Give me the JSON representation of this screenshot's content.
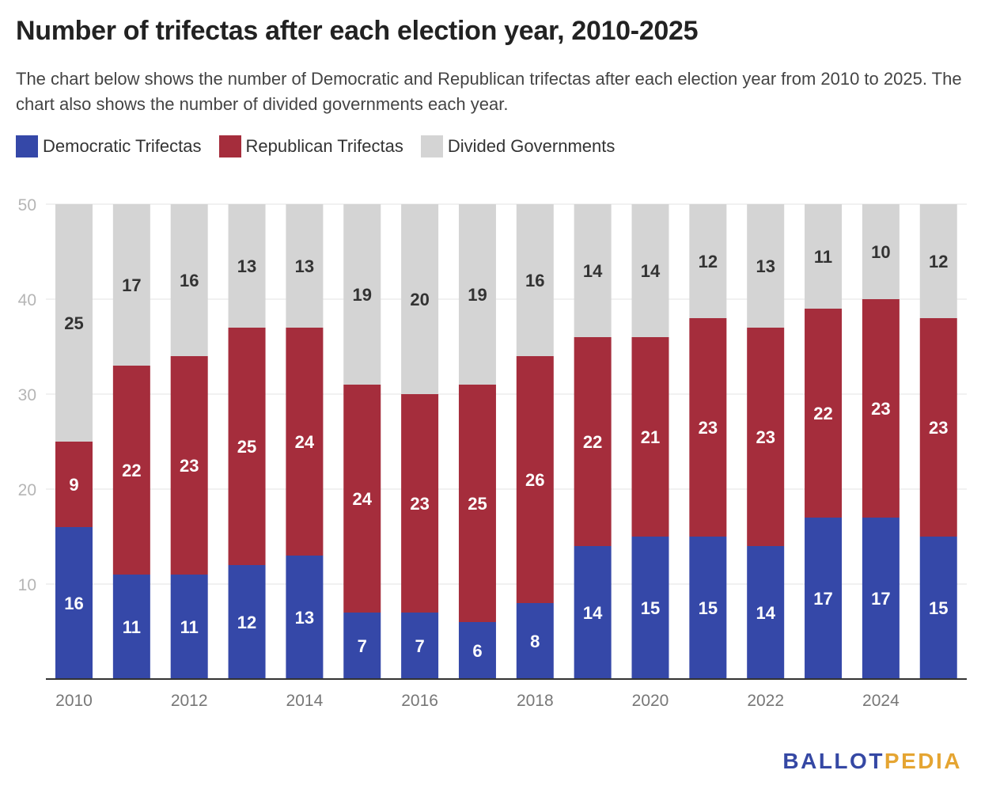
{
  "header": {
    "title": "Number of trifectas after each election year, 2010-2025",
    "subtitle": "The chart below shows the number of Democratic and Republican trifectas after each election year from 2010 to 2025. The chart also shows the number of divided governments each year."
  },
  "legend": [
    {
      "label": "Democratic Trifectas",
      "color": "#3548a8"
    },
    {
      "label": "Republican Trifectas",
      "color": "#a52d3c"
    },
    {
      "label": "Divided Governments",
      "color": "#d4d4d4"
    }
  ],
  "logo": {
    "part1": "BALLOT",
    "part2": "PEDIA"
  },
  "chart_data": {
    "type": "bar",
    "stacked": true,
    "categories": [
      "2010",
      "2011",
      "2012",
      "2013",
      "2014",
      "2015",
      "2016",
      "2017",
      "2018",
      "2019",
      "2020",
      "2021",
      "2022",
      "2023",
      "2024",
      "2025"
    ],
    "x_tick_labels": [
      "2010",
      "2012",
      "2014",
      "2016",
      "2018",
      "2020",
      "2022",
      "2024"
    ],
    "series": [
      {
        "name": "Democratic Trifectas",
        "color": "#3548a8",
        "values": [
          16,
          11,
          11,
          12,
          13,
          7,
          7,
          6,
          8,
          14,
          15,
          15,
          14,
          17,
          17,
          15
        ]
      },
      {
        "name": "Republican Trifectas",
        "color": "#a52d3c",
        "values": [
          9,
          22,
          23,
          25,
          24,
          24,
          23,
          25,
          26,
          22,
          21,
          23,
          23,
          22,
          23,
          23
        ]
      },
      {
        "name": "Divided Governments",
        "color": "#d4d4d4",
        "values": [
          25,
          17,
          16,
          13,
          13,
          19,
          20,
          19,
          16,
          14,
          14,
          12,
          13,
          11,
          10,
          12
        ]
      }
    ],
    "ylim": [
      0,
      50
    ],
    "y_ticks": [
      10,
      20,
      30,
      40,
      50
    ],
    "grid": true,
    "legend_position": "top-left",
    "xlabel": "",
    "ylabel": ""
  }
}
